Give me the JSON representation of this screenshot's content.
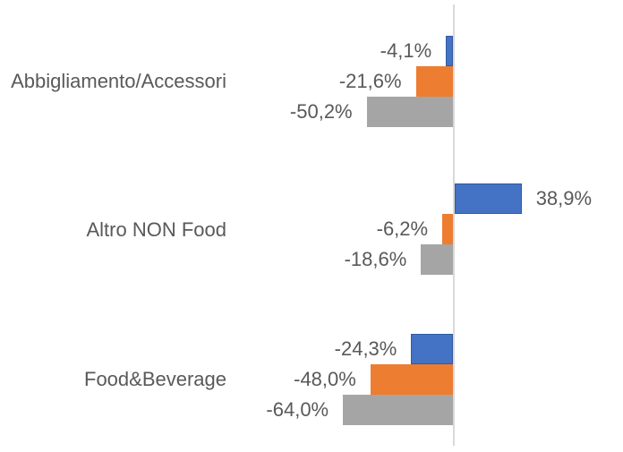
{
  "chart_data": {
    "type": "bar",
    "orientation": "horizontal",
    "title": "",
    "xlabel": "",
    "ylabel": "",
    "categories": [
      "Abbigliamento/Accessori",
      "Altro NON Food",
      "Food&Beverage"
    ],
    "series": [
      {
        "name": "series-blue",
        "color": "#4472C4",
        "values": [
          -4.1,
          38.9,
          -24.3
        ],
        "labels": [
          "-4,1%",
          "38,9%",
          "-24,3%"
        ]
      },
      {
        "name": "series-orange",
        "color": "#ED7D31",
        "values": [
          -21.6,
          -6.2,
          -48.0
        ],
        "labels": [
          "-21,6%",
          "-6,2%",
          "-48,0%"
        ]
      },
      {
        "name": "series-gray",
        "color": "#A5A5A5",
        "values": [
          -50.2,
          -18.6,
          -64.0
        ],
        "labels": [
          "-50,2%",
          "-18,6%",
          "-64,0%"
        ]
      }
    ],
    "value_format": "percent-comma-decimal",
    "xlim": [
      -70,
      45
    ],
    "grid": false,
    "legend": false,
    "axis_line_color": "#d9d9d9",
    "label_color": "#595959",
    "background": "#ffffff"
  }
}
